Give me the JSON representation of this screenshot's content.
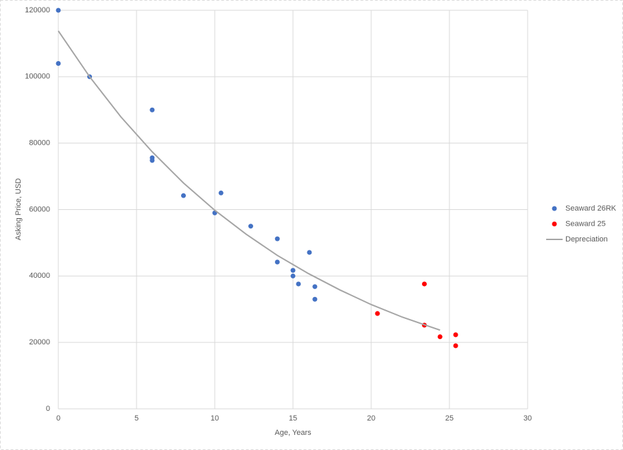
{
  "chart_data": {
    "type": "scatter",
    "xlabel": "Age, Years",
    "ylabel": "Asking Price, USD",
    "xlim": [
      0,
      30
    ],
    "xticks": [
      0,
      5,
      10,
      15,
      20,
      25,
      30
    ],
    "ylim": [
      0,
      120000
    ],
    "yticks": [
      0,
      20000,
      40000,
      60000,
      80000,
      100000,
      120000
    ],
    "grid": true,
    "legend": "right",
    "series": [
      {
        "name": "Seaward 26RK",
        "color": "#4472c4",
        "style": "markers",
        "x": [
          0,
          0,
          2,
          6,
          6,
          6,
          8,
          10.4,
          10,
          12.3,
          14,
          14,
          16.05,
          15,
          15,
          15.35,
          16.4,
          16.4
        ],
        "values": [
          120000,
          104000,
          100000,
          90000,
          75600,
          74800,
          64200,
          65000,
          59000,
          55000,
          51200,
          44200,
          47100,
          41700,
          40000,
          37600,
          36800,
          33000
        ]
      },
      {
        "name": "Seaward 25",
        "color": "#ff0000",
        "style": "markers",
        "x": [
          20.4,
          23.4,
          23.4,
          24.4,
          25.4,
          25.4
        ],
        "values": [
          28700,
          37600,
          25200,
          21700,
          22300,
          19000
        ]
      },
      {
        "name": "Depreciation",
        "color": "#a5a5a5",
        "style": "line",
        "x": [
          0,
          2,
          4,
          6,
          8,
          10,
          12,
          14,
          16,
          18,
          20,
          22,
          24.4
        ],
        "values": [
          113800,
          100000,
          87900,
          77400,
          68000,
          59800,
          52600,
          46200,
          40700,
          35800,
          31400,
          27600,
          23700
        ]
      }
    ]
  }
}
